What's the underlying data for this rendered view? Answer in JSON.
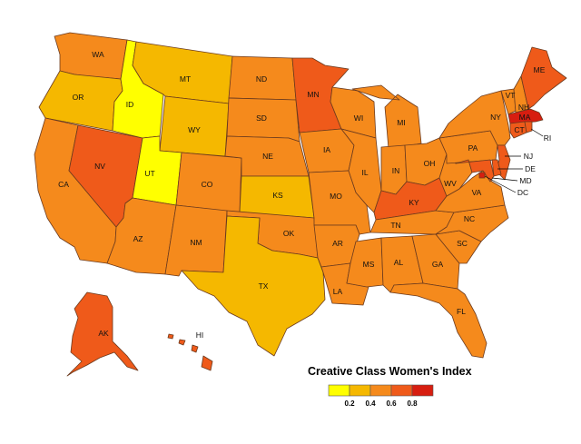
{
  "legend": {
    "title": "Creative Class Women's Index",
    "ticks": [
      "0.2",
      "0.4",
      "0.6",
      "0.8"
    ],
    "swatch_colors": [
      "#ffff00",
      "#f5b800",
      "#f58a1c",
      "#ef5a1a",
      "#d71e10"
    ]
  },
  "colors": {
    "level1": "#ffff00",
    "level2": "#f5b800",
    "level3": "#f58a1c",
    "level4": "#ef5a1a",
    "level5": "#d71e10",
    "border": "#6b3a1e"
  },
  "states": [
    {
      "abbr": "WA",
      "level": 3
    },
    {
      "abbr": "OR",
      "level": 2
    },
    {
      "abbr": "CA",
      "level": 3
    },
    {
      "abbr": "NV",
      "level": 4
    },
    {
      "abbr": "ID",
      "level": 1
    },
    {
      "abbr": "MT",
      "level": 2
    },
    {
      "abbr": "WY",
      "level": 2
    },
    {
      "abbr": "UT",
      "level": 1
    },
    {
      "abbr": "AZ",
      "level": 3
    },
    {
      "abbr": "CO",
      "level": 3
    },
    {
      "abbr": "NM",
      "level": 3
    },
    {
      "abbr": "ND",
      "level": 3
    },
    {
      "abbr": "SD",
      "level": 3
    },
    {
      "abbr": "NE",
      "level": 3
    },
    {
      "abbr": "KS",
      "level": 2
    },
    {
      "abbr": "OK",
      "level": 3
    },
    {
      "abbr": "TX",
      "level": 2
    },
    {
      "abbr": "MN",
      "level": 4
    },
    {
      "abbr": "IA",
      "level": 3
    },
    {
      "abbr": "MO",
      "level": 3
    },
    {
      "abbr": "AR",
      "level": 3
    },
    {
      "abbr": "LA",
      "level": 3
    },
    {
      "abbr": "WI",
      "level": 3
    },
    {
      "abbr": "IL",
      "level": 3
    },
    {
      "abbr": "MI",
      "level": 3
    },
    {
      "abbr": "IN",
      "level": 3
    },
    {
      "abbr": "OH",
      "level": 3
    },
    {
      "abbr": "KY",
      "level": 4
    },
    {
      "abbr": "TN",
      "level": 3
    },
    {
      "abbr": "MS",
      "level": 3
    },
    {
      "abbr": "AL",
      "level": 3
    },
    {
      "abbr": "GA",
      "level": 3
    },
    {
      "abbr": "FL",
      "level": 3
    },
    {
      "abbr": "SC",
      "level": 3
    },
    {
      "abbr": "NC",
      "level": 3
    },
    {
      "abbr": "VA",
      "level": 3
    },
    {
      "abbr": "WV",
      "level": 3
    },
    {
      "abbr": "PA",
      "level": 3
    },
    {
      "abbr": "NY",
      "level": 3
    },
    {
      "abbr": "VT",
      "level": 3
    },
    {
      "abbr": "NH",
      "level": 3
    },
    {
      "abbr": "ME",
      "level": 4
    },
    {
      "abbr": "MA",
      "level": 5
    },
    {
      "abbr": "CT",
      "level": 4
    },
    {
      "abbr": "RI",
      "level": 4
    },
    {
      "abbr": "NJ",
      "level": 4
    },
    {
      "abbr": "DE",
      "level": 4
    },
    {
      "abbr": "MD",
      "level": 4
    },
    {
      "abbr": "DC",
      "level": 5
    },
    {
      "abbr": "AK",
      "level": 4
    },
    {
      "abbr": "HI",
      "level": 4
    }
  ]
}
